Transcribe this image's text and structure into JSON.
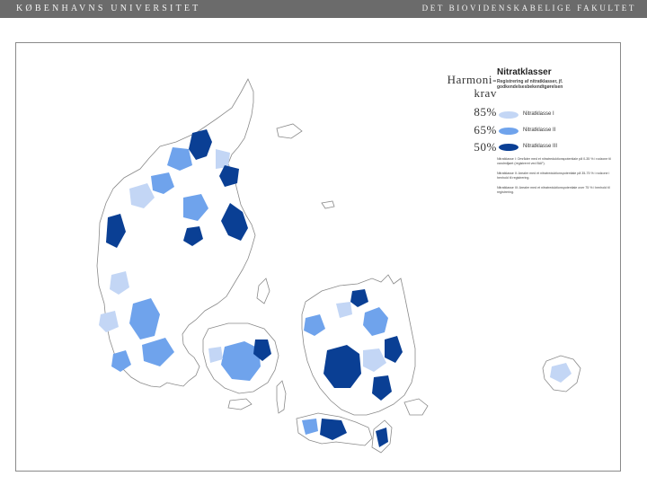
{
  "header": {
    "left_text": "KØBENHAVNS UNIVERSITET",
    "right_text": "DET BIOVIDENSKABELIGE FAKULTET"
  },
  "harmoni": {
    "label": "Harmoni-krav",
    "line1": "Harmoni-",
    "line2": "krav",
    "levels": [
      "85%",
      "65%",
      "50%"
    ]
  },
  "legend": {
    "title": "Nitratklasser",
    "subtitle": "Registrering af nitratklasser, jf. godkendelsesbekendtgørelsen",
    "items": [
      {
        "label": "Nitratklasse I",
        "color": "#c3d6f5"
      },
      {
        "label": "Nitratklasse II",
        "color": "#6fa3ec"
      },
      {
        "label": "Nitratklasse III",
        "color": "#0a3f94"
      }
    ],
    "notes": [
      "Nitratklasse I: Områder med et nitratreduktionspotentiale på 0-35 % i rodzone til vandmiljøet (registreret ved BAF).",
      "Nitratklasse II: Arealer med et nitratreduktionspotentiale på 35-75 % i rodzone i henhold til registrering.",
      "Nitratklasse III: Arealer med et nitratreduktionspotentiale over 75 % i henhold til registrering."
    ]
  },
  "colors": {
    "topbar": "#6b6b6b",
    "land_fill": "#ffffff",
    "coast_stroke": "#8a8a8a",
    "class_1": "#c3d6f5",
    "class_2": "#6fa3ec",
    "class_3": "#0a3f94"
  }
}
